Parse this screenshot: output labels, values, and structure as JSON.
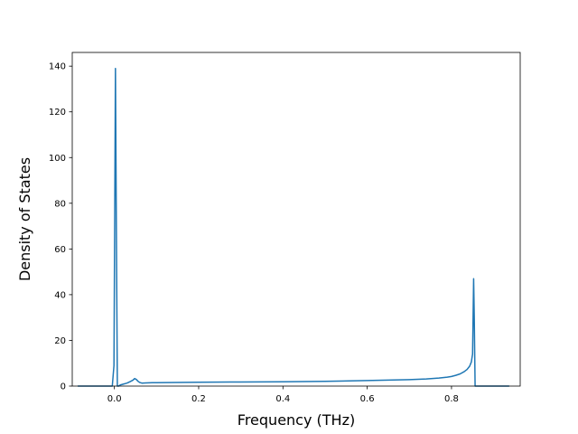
{
  "chart_data": {
    "type": "line",
    "title": "",
    "xlabel": "Frequency (THz)",
    "ylabel": "Density of States",
    "xlim": [
      -0.1,
      0.963
    ],
    "ylim": [
      0,
      146
    ],
    "xticks": [
      0.0,
      0.2,
      0.4,
      0.6,
      0.8
    ],
    "xtick_labels": [
      "0.0",
      "0.2",
      "0.4",
      "0.6",
      "0.8"
    ],
    "yticks": [
      0,
      20,
      40,
      60,
      80,
      100,
      120,
      140
    ],
    "ytick_labels": [
      "0",
      "20",
      "40",
      "60",
      "80",
      "100",
      "120",
      "140"
    ],
    "grid": false,
    "legend": "none",
    "series": [
      {
        "color": "#1f77b4",
        "x": [
          -0.087,
          -0.005,
          -0.001,
          0.0025,
          0.0045,
          0.007,
          0.01,
          0.014,
          0.02,
          0.03,
          0.038,
          0.044,
          0.048,
          0.052,
          0.056,
          0.06,
          0.065,
          0.075,
          0.09,
          0.1,
          0.15,
          0.2,
          0.3,
          0.4,
          0.5,
          0.6,
          0.65,
          0.7,
          0.74,
          0.77,
          0.79,
          0.8,
          0.81,
          0.82,
          0.83,
          0.837,
          0.843,
          0.847,
          0.85,
          0.8525,
          0.854,
          0.856,
          0.859,
          0.865,
          0.9,
          0.937
        ],
        "y": [
          0,
          0,
          9,
          139,
          75,
          0,
          0,
          0.5,
          0.8,
          1.3,
          2.0,
          2.6,
          3.3,
          2.9,
          2.1,
          1.6,
          1.3,
          1.4,
          1.5,
          1.5,
          1.6,
          1.7,
          1.8,
          1.9,
          2.1,
          2.4,
          2.6,
          2.8,
          3.1,
          3.5,
          3.9,
          4.2,
          4.7,
          5.3,
          6.3,
          7.3,
          8.7,
          10.5,
          14,
          47,
          30,
          0,
          0,
          0,
          0,
          0
        ]
      }
    ]
  }
}
